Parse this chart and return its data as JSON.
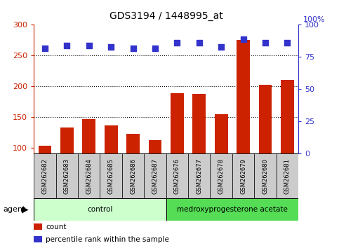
{
  "title": "GDS3194 / 1448995_at",
  "samples": [
    "GSM262682",
    "GSM262683",
    "GSM262684",
    "GSM262685",
    "GSM262686",
    "GSM262687",
    "GSM262676",
    "GSM262677",
    "GSM262678",
    "GSM262679",
    "GSM262680",
    "GSM262681"
  ],
  "counts": [
    103,
    133,
    147,
    136,
    122,
    112,
    189,
    188,
    154,
    275,
    202,
    210
  ],
  "percentiles": [
    82,
    84,
    84,
    83,
    82,
    82,
    86,
    86,
    83,
    89,
    86,
    86
  ],
  "bar_color": "#cc2200",
  "dot_color": "#3333cc",
  "ylim_left": [
    90,
    300
  ],
  "ylim_right": [
    0,
    100
  ],
  "yticks_left": [
    100,
    150,
    200,
    250,
    300
  ],
  "yticks_right": [
    0,
    25,
    50,
    75,
    100
  ],
  "grid_lines": [
    150,
    200,
    250
  ],
  "groups": [
    {
      "label": "control",
      "start": 0,
      "end": 6,
      "color": "#ccffcc"
    },
    {
      "label": "medroxyprogesterone acetate",
      "start": 6,
      "end": 12,
      "color": "#55dd55"
    }
  ],
  "agent_label": "agent",
  "legend_items": [
    {
      "label": "count",
      "color": "#cc2200"
    },
    {
      "label": "percentile rank within the sample",
      "color": "#3333cc"
    }
  ],
  "sample_bg_color": "#cccccc",
  "bar_base": 90,
  "right_axis_top_label": "100%"
}
